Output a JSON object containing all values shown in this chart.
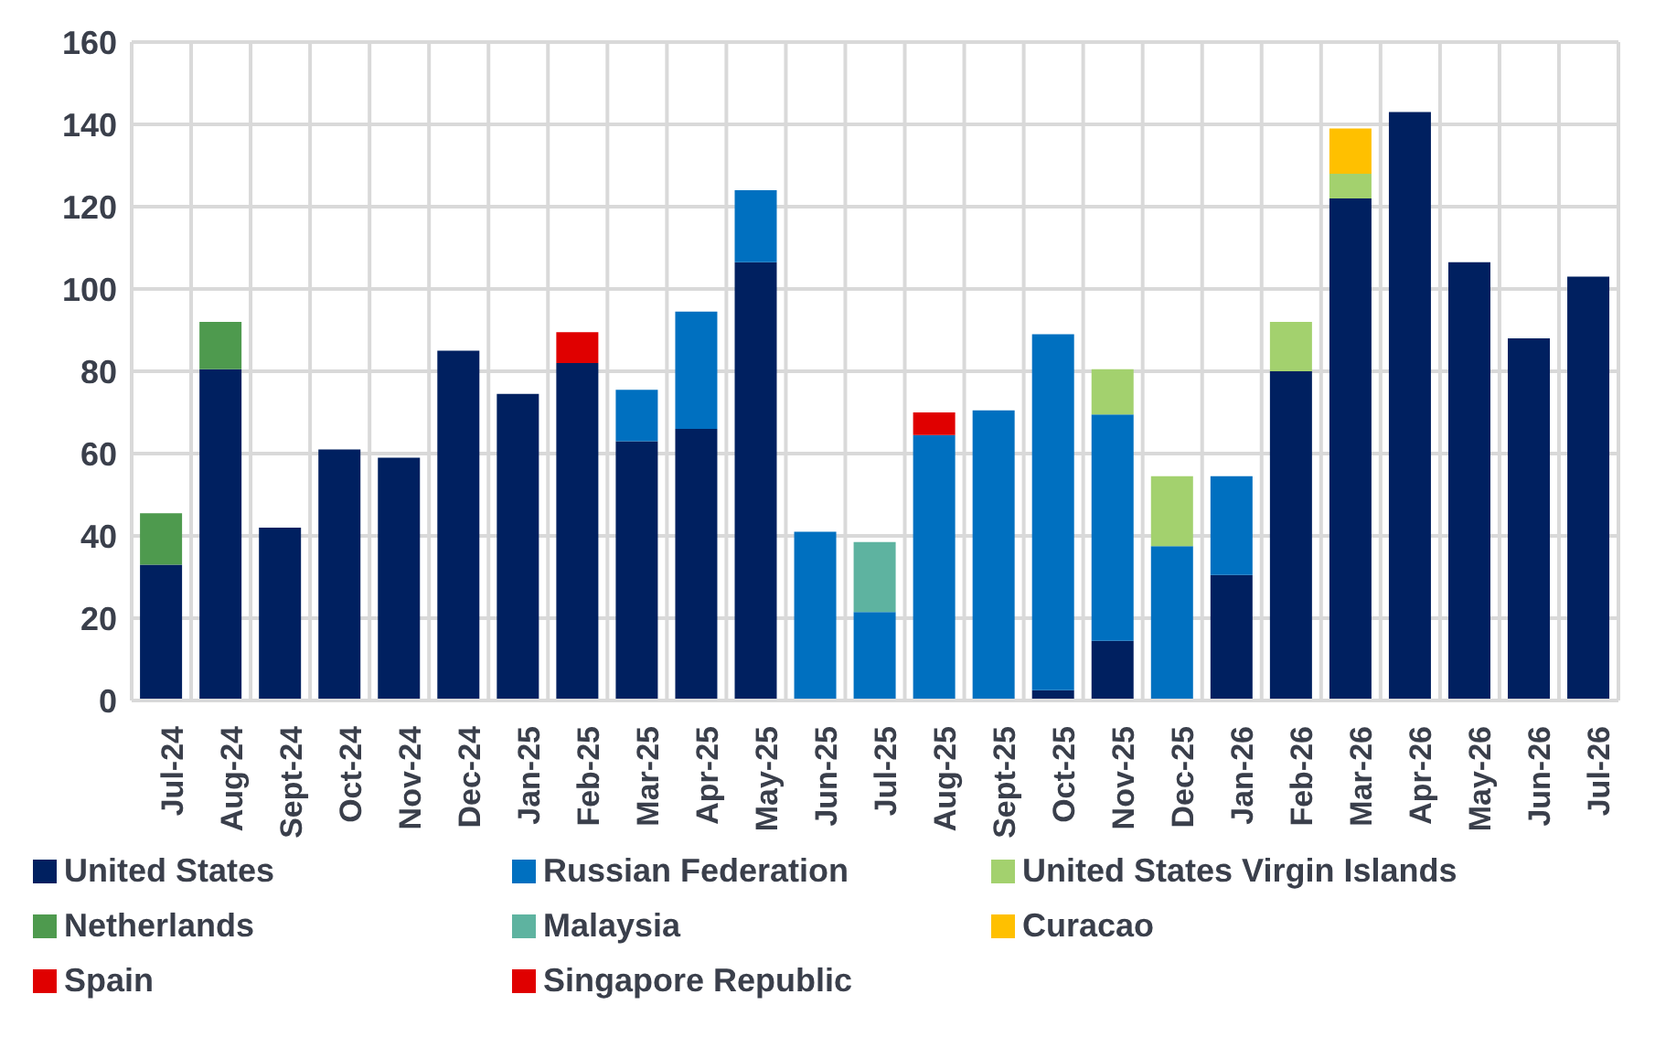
{
  "chart_data": {
    "type": "bar",
    "stacked": true,
    "categories": [
      "Jul-24",
      "Aug-24",
      "Sept-24",
      "Oct-24",
      "Nov-24",
      "Dec-24",
      "Jan-25",
      "Feb-25",
      "Mar-25",
      "Apr-25",
      "May-25",
      "Jun-25",
      "Jul-25",
      "Aug-25",
      "Sept-25",
      "Oct-25",
      "Nov-25",
      "Dec-25",
      "Jan-26",
      "Feb-26",
      "Mar-26",
      "Apr-26",
      "May-26",
      "Jun-26",
      "Jul-26"
    ],
    "series": [
      {
        "name": "United States",
        "color": "#002060",
        "values": [
          33,
          80.5,
          42,
          61,
          59,
          85,
          74.5,
          82,
          63,
          66,
          106.5,
          null,
          null,
          null,
          null,
          2.5,
          14.5,
          null,
          30.5,
          80,
          122,
          143,
          106.5,
          88,
          103
        ]
      },
      {
        "name": "Russian Federation",
        "color": "#0070c0",
        "values": [
          null,
          null,
          null,
          null,
          null,
          null,
          null,
          null,
          12.5,
          28.5,
          17.5,
          41,
          21.5,
          64.5,
          70.5,
          86.5,
          55,
          37.5,
          24,
          null,
          null,
          null,
          null,
          null,
          null
        ]
      },
      {
        "name": "United States Virgin Islands",
        "color": "#a3d16e",
        "values": [
          null,
          null,
          null,
          null,
          null,
          null,
          null,
          null,
          null,
          null,
          null,
          null,
          null,
          null,
          null,
          null,
          11,
          17,
          null,
          12,
          6,
          null,
          null,
          null,
          null
        ]
      },
      {
        "name": "Netherlands",
        "color": "#4e9a4e",
        "values": [
          12.5,
          11.5,
          null,
          null,
          null,
          null,
          null,
          null,
          null,
          null,
          null,
          null,
          null,
          null,
          null,
          null,
          null,
          null,
          null,
          null,
          null,
          null,
          null,
          null,
          null
        ]
      },
      {
        "name": "Malaysia",
        "color": "#5eb3a0",
        "values": [
          null,
          null,
          null,
          null,
          null,
          null,
          null,
          null,
          null,
          null,
          null,
          null,
          17,
          null,
          null,
          null,
          null,
          null,
          null,
          null,
          null,
          null,
          null,
          null,
          null
        ]
      },
      {
        "name": "Curacao",
        "color": "#ffc000",
        "values": [
          null,
          null,
          null,
          null,
          null,
          null,
          null,
          null,
          null,
          null,
          null,
          null,
          null,
          null,
          null,
          null,
          null,
          null,
          null,
          null,
          11,
          null,
          null,
          null,
          null
        ]
      },
      {
        "name": "Spain",
        "color": "#e00000",
        "values": [
          null,
          null,
          null,
          null,
          null,
          null,
          null,
          7.5,
          null,
          null,
          null,
          null,
          null,
          null,
          null,
          null,
          null,
          null,
          null,
          null,
          null,
          null,
          null,
          null,
          null
        ]
      },
      {
        "name": "Singapore Republic",
        "color": "#e00000",
        "values": [
          null,
          null,
          null,
          null,
          null,
          null,
          null,
          null,
          null,
          null,
          null,
          null,
          null,
          5.5,
          null,
          null,
          null,
          null,
          null,
          null,
          null,
          null,
          null,
          null,
          null
        ]
      }
    ],
    "ylim": [
      0,
      160
    ],
    "yticks": [
      0,
      20,
      40,
      60,
      80,
      100,
      120,
      140,
      160
    ],
    "grid": true,
    "legend": "bottom"
  }
}
